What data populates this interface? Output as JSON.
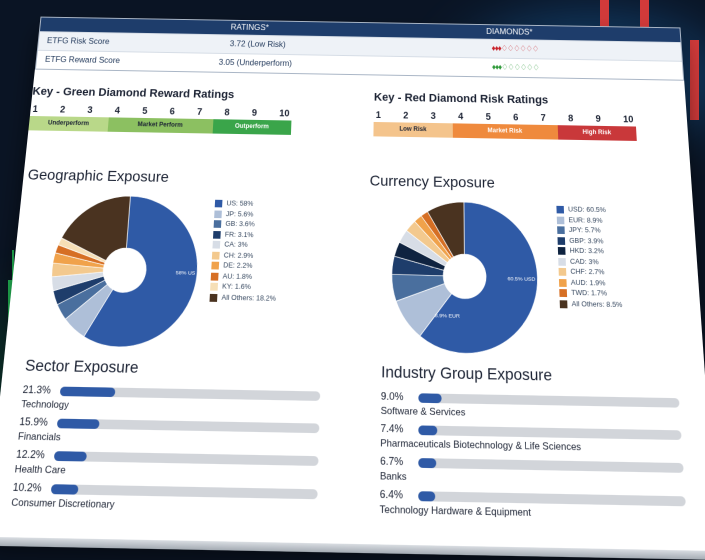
{
  "ratings_table": {
    "header_ratings": "RATINGS*",
    "header_diamonds": "DIAMONDS*",
    "rows": [
      {
        "label": "ETFG Risk Score",
        "value": "3.72 (Low Risk)",
        "diamonds": "♦♦♦♢♢♢♢♢♢",
        "diamond_color": "#c9242c"
      },
      {
        "label": "ETFG Reward Score",
        "value": "3.05 (Underperform)",
        "diamonds": "♦♦♦♢♢♢♢♢♢",
        "diamond_color": "#2f9a3a"
      }
    ]
  },
  "key_green": {
    "title": "Key - Green Diamond Reward Ratings",
    "numbers": [
      "1",
      "2",
      "3",
      "4",
      "5",
      "6",
      "7",
      "8",
      "9",
      "10"
    ],
    "bands": [
      {
        "label": "Underperform",
        "color": "#b9d889",
        "span": 3
      },
      {
        "label": "Market Perform",
        "color": "#8cc061",
        "span": 4
      },
      {
        "label": "Outperform",
        "color": "#3aa54a",
        "span": 3
      }
    ]
  },
  "key_red": {
    "title": "Key - Red Diamond Risk Ratings",
    "numbers": [
      "1",
      "2",
      "3",
      "4",
      "5",
      "6",
      "7",
      "8",
      "9",
      "10"
    ],
    "bands": [
      {
        "label": "Low Risk",
        "color": "#f4c48c",
        "span": 3
      },
      {
        "label": "Market Risk",
        "color": "#ef8a3d",
        "span": 4
      },
      {
        "label": "High Risk",
        "color": "#c9383a",
        "span": 3
      }
    ]
  },
  "geographic": {
    "title": "Geographic Exposure",
    "center_label": "58% US",
    "legend": [
      {
        "label": "US: 58%",
        "value": 58,
        "color": "#2f5aa6"
      },
      {
        "label": "JP: 5.6%",
        "value": 5.6,
        "color": "#aebfd8"
      },
      {
        "label": "GB: 3.6%",
        "value": 3.6,
        "color": "#4a6f9e"
      },
      {
        "label": "FR: 3.1%",
        "value": 3.1,
        "color": "#1e3d6b"
      },
      {
        "label": "CA: 3%",
        "value": 3,
        "color": "#d7dde6"
      },
      {
        "label": "CH: 2.9%",
        "value": 2.9,
        "color": "#f3c98e"
      },
      {
        "label": "DE: 2.2%",
        "value": 2.2,
        "color": "#f0a24b"
      },
      {
        "label": "AU: 1.8%",
        "value": 1.8,
        "color": "#d66f24"
      },
      {
        "label": "KY: 1.6%",
        "value": 1.6,
        "color": "#f6dfb6"
      },
      {
        "label": "All Others: 18.2%",
        "value": 18.2,
        "color": "#4a3320"
      }
    ]
  },
  "currency": {
    "title": "Currency Exposure",
    "center_label": "60.5% USD",
    "secondary_label": "8.9% EUR",
    "legend": [
      {
        "label": "USD: 60.5%",
        "value": 60.5,
        "color": "#2f5aa6"
      },
      {
        "label": "EUR: 8.9%",
        "value": 8.9,
        "color": "#aebfd8"
      },
      {
        "label": "JPY: 5.7%",
        "value": 5.7,
        "color": "#4a6f9e"
      },
      {
        "label": "GBP: 3.9%",
        "value": 3.9,
        "color": "#1e3d6b"
      },
      {
        "label": "HKD: 3.2%",
        "value": 3.2,
        "color": "#0f2340"
      },
      {
        "label": "CAD: 3%",
        "value": 3,
        "color": "#d7dde6"
      },
      {
        "label": "CHF: 2.7%",
        "value": 2.7,
        "color": "#f3c98e"
      },
      {
        "label": "AUD: 1.9%",
        "value": 1.9,
        "color": "#f0a24b"
      },
      {
        "label": "TWD: 1.7%",
        "value": 1.7,
        "color": "#d66f24"
      },
      {
        "label": "All Others: 8.5%",
        "value": 8.5,
        "color": "#4a3320"
      }
    ]
  },
  "sector": {
    "title": "Sector Exposure",
    "items": [
      {
        "pct": "21.3%",
        "value": 21.3,
        "label": "Technology"
      },
      {
        "pct": "15.9%",
        "value": 15.9,
        "label": "Financials"
      },
      {
        "pct": "12.2%",
        "value": 12.2,
        "label": "Health Care"
      },
      {
        "pct": "10.2%",
        "value": 10.2,
        "label": "Consumer Discretionary"
      }
    ]
  },
  "industry": {
    "title": "Industry Group Exposure",
    "items": [
      {
        "pct": "9.0%",
        "value": 9.0,
        "label": "Software & Services"
      },
      {
        "pct": "7.4%",
        "value": 7.4,
        "label": "Pharmaceuticals Biotechnology & Life Sciences"
      },
      {
        "pct": "6.7%",
        "value": 6.7,
        "label": "Banks"
      },
      {
        "pct": "6.4%",
        "value": 6.4,
        "label": "Technology Hardware & Equipment"
      }
    ]
  },
  "nav": {
    "next_arrow": "›",
    "icon": "chevron-right-icon"
  }
}
